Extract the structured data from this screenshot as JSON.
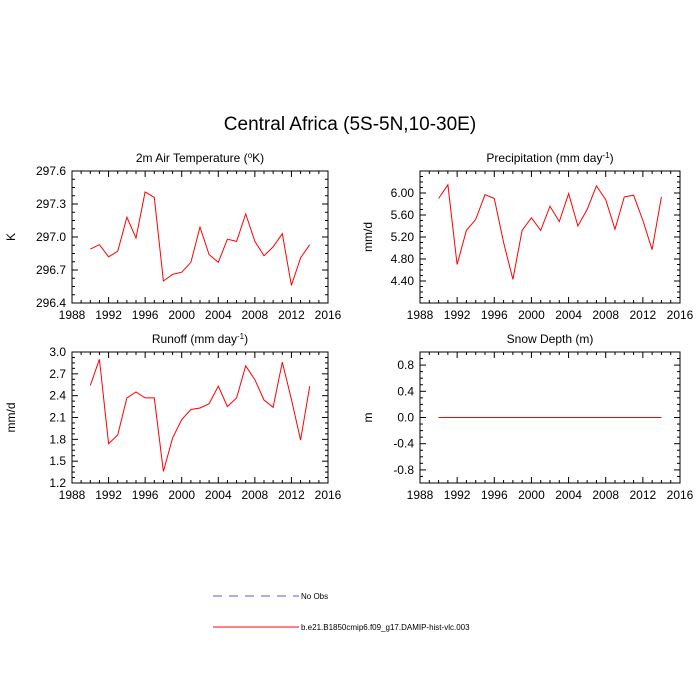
{
  "title": "Central Africa (5S-5N,10-30E)",
  "chart_data": [
    {
      "type": "line",
      "title": "2m Air Temperature (",
      "title_sup": "o",
      "title_tail": "K)",
      "ylabel": "K",
      "xlim": [
        1988,
        2016
      ],
      "ylim": [
        296.4,
        297.6
      ],
      "xticks": [
        1988,
        1992,
        1996,
        2000,
        2004,
        2008,
        2012,
        2016
      ],
      "yticks": [
        "296.4",
        "296.7",
        "297.0",
        "297.3",
        "297.6"
      ],
      "yticks_values": [
        296.4,
        296.7,
        297.0,
        297.3,
        297.6
      ],
      "series": [
        {
          "name": "b.e21.B1850cmip6.f09_g17.DAMIP-hist-vlc.003",
          "color": "#ff0000",
          "x": [
            1990,
            1991,
            1992,
            1993,
            1994,
            1995,
            1996,
            1997,
            1998,
            1999,
            2000,
            2001,
            2002,
            2003,
            2004,
            2005,
            2006,
            2007,
            2008,
            2009,
            2010,
            2011,
            2012,
            2013,
            2014
          ],
          "values": [
            296.89,
            296.93,
            296.82,
            296.87,
            297.18,
            296.99,
            297.41,
            297.36,
            296.6,
            296.66,
            296.68,
            296.77,
            297.09,
            296.84,
            296.77,
            296.98,
            296.96,
            297.21,
            296.96,
            296.83,
            296.91,
            297.03,
            296.56,
            296.81,
            296.93
          ]
        }
      ]
    },
    {
      "type": "line",
      "title": "Precipitation (mm day",
      "title_sup": "-1",
      "title_tail": ")",
      "ylabel": "mm/d",
      "xlim": [
        1988,
        2016
      ],
      "ylim": [
        4.0,
        6.4
      ],
      "xticks": [
        1988,
        1992,
        1996,
        2000,
        2004,
        2008,
        2012,
        2016
      ],
      "yticks": [
        "4.40",
        "4.80",
        "5.20",
        "5.60",
        "6.00"
      ],
      "yticks_values": [
        4.4,
        4.8,
        5.2,
        5.6,
        6.0
      ],
      "series": [
        {
          "name": "b.e21.B1850cmip6.f09_g17.DAMIP-hist-vlc.003",
          "color": "#ff0000",
          "x": [
            1990,
            1991,
            1992,
            1993,
            1994,
            1995,
            1996,
            1997,
            1998,
            1999,
            2000,
            2001,
            2002,
            2003,
            2004,
            2005,
            2006,
            2007,
            2008,
            2009,
            2010,
            2011,
            2012,
            2013,
            2014
          ],
          "values": [
            5.9,
            6.15,
            4.7,
            5.32,
            5.52,
            5.97,
            5.9,
            5.1,
            4.43,
            5.32,
            5.55,
            5.32,
            5.76,
            5.48,
            5.99,
            5.4,
            5.7,
            6.13,
            5.88,
            5.34,
            5.93,
            5.96,
            5.5,
            4.97,
            5.93
          ]
        }
      ]
    },
    {
      "type": "line",
      "title": "Runoff (mm day",
      "title_sup": "-1",
      "title_tail": ")",
      "ylabel": "mm/d",
      "xlim": [
        1988,
        2016
      ],
      "ylim": [
        1.2,
        3.0
      ],
      "xticks": [
        1988,
        1992,
        1996,
        2000,
        2004,
        2008,
        2012,
        2016
      ],
      "yticks": [
        "1.2",
        "1.5",
        "1.8",
        "2.1",
        "2.4",
        "2.7",
        "3.0"
      ],
      "yticks_values": [
        1.2,
        1.5,
        1.8,
        2.1,
        2.4,
        2.7,
        3.0
      ],
      "series": [
        {
          "name": "b.e21.B1850cmip6.f09_g17.DAMIP-hist-vlc.003",
          "color": "#ff0000",
          "x": [
            1990,
            1991,
            1992,
            1993,
            1994,
            1995,
            1996,
            1997,
            1998,
            1999,
            2000,
            2001,
            2002,
            2003,
            2004,
            2005,
            2006,
            2007,
            2008,
            2009,
            2010,
            2011,
            2012,
            2013,
            2014
          ],
          "values": [
            2.54,
            2.9,
            1.74,
            1.86,
            2.37,
            2.45,
            2.37,
            2.37,
            1.36,
            1.82,
            2.07,
            2.21,
            2.23,
            2.29,
            2.53,
            2.25,
            2.37,
            2.81,
            2.62,
            2.34,
            2.24,
            2.86,
            2.35,
            1.79,
            2.53
          ]
        }
      ]
    },
    {
      "type": "line",
      "title": "Snow Depth (m)",
      "title_sup": "",
      "title_tail": "",
      "ylabel": "m",
      "xlim": [
        1988,
        2016
      ],
      "ylim": [
        -1.0,
        1.0
      ],
      "xticks": [
        1988,
        1992,
        1996,
        2000,
        2004,
        2008,
        2012,
        2016
      ],
      "yticks": [
        "-0.8",
        "-0.4",
        "0.0",
        "0.4",
        "0.8"
      ],
      "yticks_values": [
        -0.8,
        -0.4,
        0.0,
        0.4,
        0.8
      ],
      "series": [
        {
          "name": "b.e21.B1850cmip6.f09_g17.DAMIP-hist-vlc.003",
          "color": "#ff0000",
          "x": [
            1990,
            2014
          ],
          "values": [
            0.0,
            0.0
          ]
        }
      ]
    }
  ],
  "legend": [
    {
      "label": "No Obs",
      "color": "#5a5aff",
      "style": "dashed"
    },
    {
      "label": "b.e21.B1850cmip6.f09_g17.DAMIP-hist-vlc.003",
      "color": "#ff0000",
      "style": "solid"
    }
  ]
}
